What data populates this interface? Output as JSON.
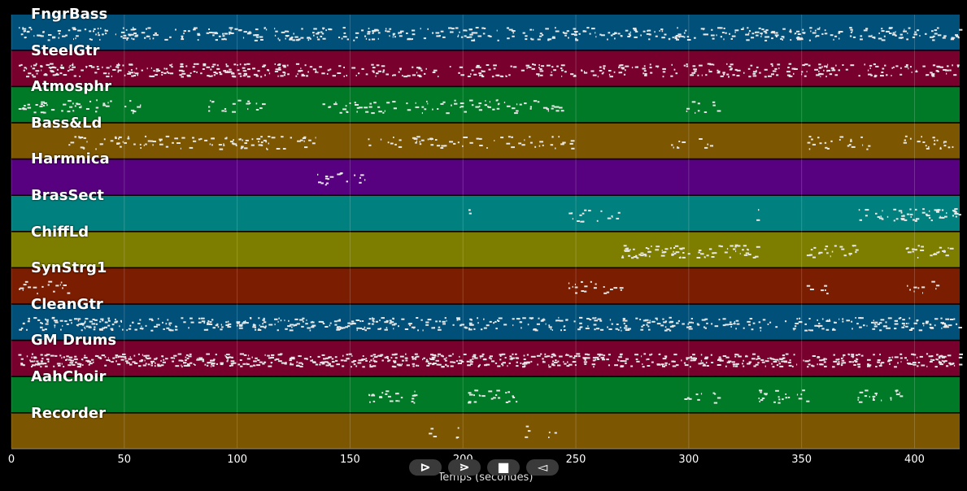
{
  "tracks": [
    {
      "name": "FngrBass",
      "color": "#005079",
      "segments": [
        [
          3,
          420,
          0.45
        ]
      ]
    },
    {
      "name": "SteelGtr",
      "color": "#78002d",
      "segments": [
        [
          3,
          135,
          0.6
        ],
        [
          135,
          420,
          0.4
        ]
      ]
    },
    {
      "name": "Atmosphr",
      "color": "#007a26",
      "segments": [
        [
          3,
          60,
          0.3
        ],
        [
          85,
          112,
          0.25
        ],
        [
          135,
          244,
          0.3
        ],
        [
          295,
          313,
          0.2
        ]
      ]
    },
    {
      "name": "Bass&Ld",
      "color": "#7c5600",
      "segments": [
        [
          25,
          135,
          0.35
        ],
        [
          157,
          248,
          0.25
        ],
        [
          292,
          312,
          0.2
        ],
        [
          352,
          380,
          0.3
        ],
        [
          395,
          420,
          0.3
        ]
      ]
    },
    {
      "name": "Harmnica",
      "color": "#570080",
      "segments": [
        [
          135,
          157,
          0.3
        ]
      ]
    },
    {
      "name": "BrasSect",
      "color": "#00807e",
      "segments": [
        [
          202,
          203,
          0.2
        ],
        [
          246,
          270,
          0.25
        ],
        [
          329,
          332,
          0.25
        ],
        [
          374,
          420,
          0.45
        ]
      ]
    },
    {
      "name": "ChiffLd",
      "color": "#7d7d00",
      "segments": [
        [
          270,
          330,
          0.5
        ],
        [
          351,
          375,
          0.35
        ],
        [
          396,
          420,
          0.35
        ]
      ]
    },
    {
      "name": "SynStrg1",
      "color": "#7a1d00",
      "segments": [
        [
          3,
          25,
          0.3
        ],
        [
          246,
          270,
          0.3
        ],
        [
          352,
          362,
          0.25
        ],
        [
          396,
          410,
          0.25
        ]
      ]
    },
    {
      "name": "CleanGtr",
      "color": "#005079",
      "segments": [
        [
          3,
          420,
          0.5
        ]
      ]
    },
    {
      "name": "GM Drums",
      "color": "#78002d",
      "segments": [
        [
          3,
          420,
          0.7
        ]
      ]
    },
    {
      "name": "AahChoir",
      "color": "#007a26",
      "segments": [
        [
          158,
          180,
          0.4
        ],
        [
          202,
          224,
          0.4
        ],
        [
          295,
          313,
          0.2
        ],
        [
          329,
          352,
          0.35
        ],
        [
          373,
          395,
          0.35
        ]
      ]
    },
    {
      "name": "Recorder",
      "color": "#7c5600",
      "segments": [
        [
          182,
          188,
          0.2
        ],
        [
          193,
          198,
          0.2
        ],
        [
          226,
          232,
          0.2
        ],
        [
          237,
          242,
          0.2
        ]
      ]
    }
  ],
  "axis": {
    "ticks": [
      "0",
      "50",
      "100",
      "150",
      "200",
      "250",
      "300",
      "350",
      "400"
    ],
    "title": "Temps (secondes)",
    "xlim": [
      0,
      420
    ]
  },
  "controls": [
    {
      "name": "play-icon",
      "glyph": "⊳"
    },
    {
      "name": "next-icon",
      "glyph": "⋗"
    },
    {
      "name": "stop-icon",
      "glyph": "■"
    },
    {
      "name": "prev-icon",
      "glyph": "◅"
    }
  ]
}
